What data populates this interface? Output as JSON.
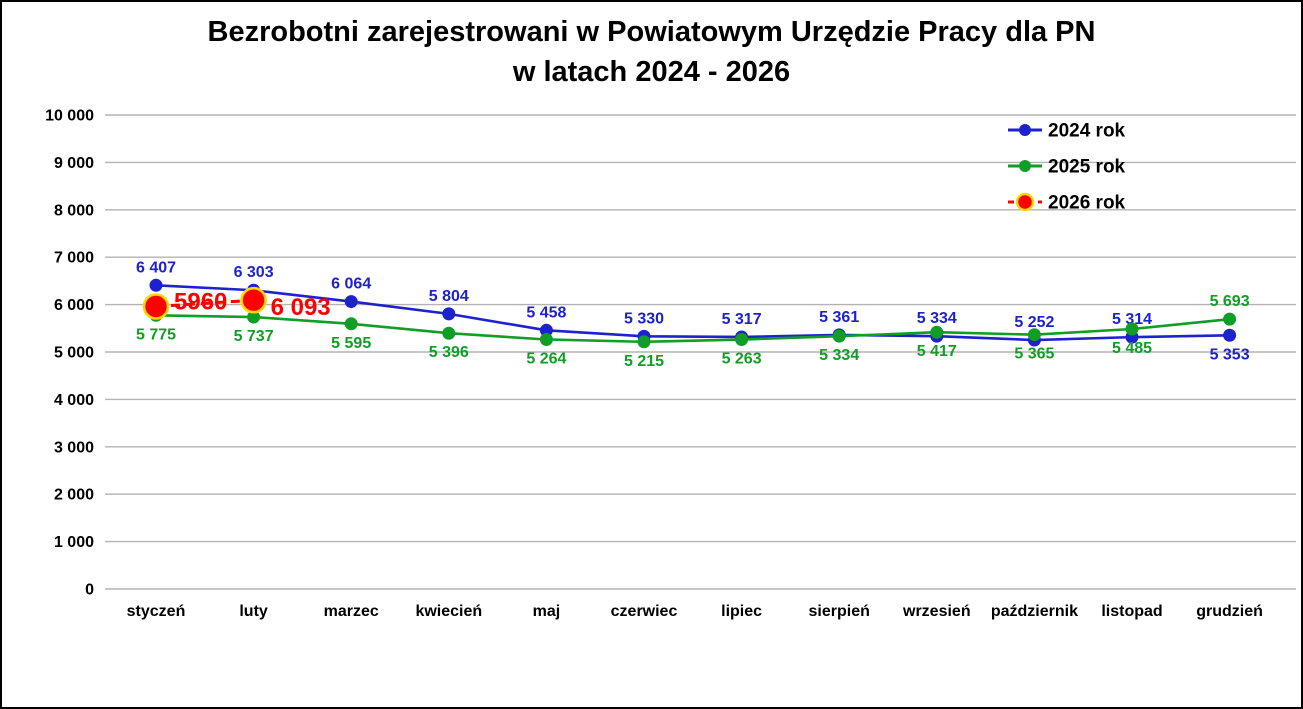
{
  "title": {
    "line1": "Bezrobotni zarejestrowani w Powiatowym Urzędzie Pracy dla PN",
    "line2": "w latach 2024 - 2026"
  },
  "chart_data": {
    "type": "line",
    "title": "Bezrobotni zarejestrowani w Powiatowym Urzędzie Pracy dla PN w latach 2024 - 2026",
    "categories": [
      "styczeń",
      "luty",
      "marzec",
      "kwiecień",
      "maj",
      "czerwiec",
      "lipiec",
      "sierpień",
      "wrzesień",
      "październik",
      "listopad",
      "grudzień"
    ],
    "ylim": [
      0,
      10000
    ],
    "ytick_step": 1000,
    "ytick_values": [
      0,
      1000,
      2000,
      3000,
      4000,
      5000,
      6000,
      7000,
      8000,
      9000,
      10000
    ],
    "ytick_labels": [
      "0",
      "1 000",
      "2 000",
      "3 000",
      "4 000",
      "5 000",
      "6 000",
      "7 000",
      "8 000",
      "9 000",
      "10 000"
    ],
    "grid": true,
    "grid_color": "#b3b3b3",
    "legend_position": "top-right",
    "series": [
      {
        "name": "2024 rok",
        "color": "#1e22cc",
        "dashed": false,
        "values": [
          6407,
          6303,
          6064,
          5804,
          5458,
          5330,
          5317,
          5361,
          5334,
          5252,
          5314,
          5353
        ],
        "labels": [
          "6 407",
          "6 303",
          "6 064",
          "5 804",
          "5 458",
          "5 330",
          "5 317",
          "5 361",
          "5 334",
          "5 252",
          "5 314",
          "5 353"
        ],
        "label_positions": [
          "above",
          "above",
          "above",
          "above",
          "above",
          "above",
          "above",
          "above",
          "above",
          "above",
          "above",
          "below"
        ]
      },
      {
        "name": "2025 rok",
        "color": "#119e27",
        "dashed": false,
        "values": [
          5775,
          5737,
          5595,
          5396,
          5264,
          5215,
          5263,
          5334,
          5417,
          5365,
          5485,
          5693
        ],
        "labels": [
          "5 775",
          "5 737",
          "5 595",
          "5 396",
          "5 264",
          "5 215",
          "5 263",
          "5 334",
          "5 417",
          "5 365",
          "5 485",
          "5 693"
        ],
        "label_positions": [
          "below",
          "below",
          "below",
          "below",
          "below",
          "below",
          "below",
          "below",
          "below",
          "below",
          "below",
          "above"
        ]
      },
      {
        "name": "2026 rok",
        "color": "#fe0000",
        "marker_ring": "#ffd700",
        "dashed": true,
        "values": [
          5960,
          6093,
          null,
          null,
          null,
          null,
          null,
          null,
          null,
          null,
          null,
          null
        ],
        "labels": [
          "5960",
          "6 093",
          null,
          null,
          null,
          null,
          null,
          null,
          null,
          null,
          null,
          null
        ],
        "label_positions": [
          "right-up",
          "right-down",
          null,
          null,
          null,
          null,
          null,
          null,
          null,
          null,
          null,
          null
        ]
      }
    ]
  }
}
